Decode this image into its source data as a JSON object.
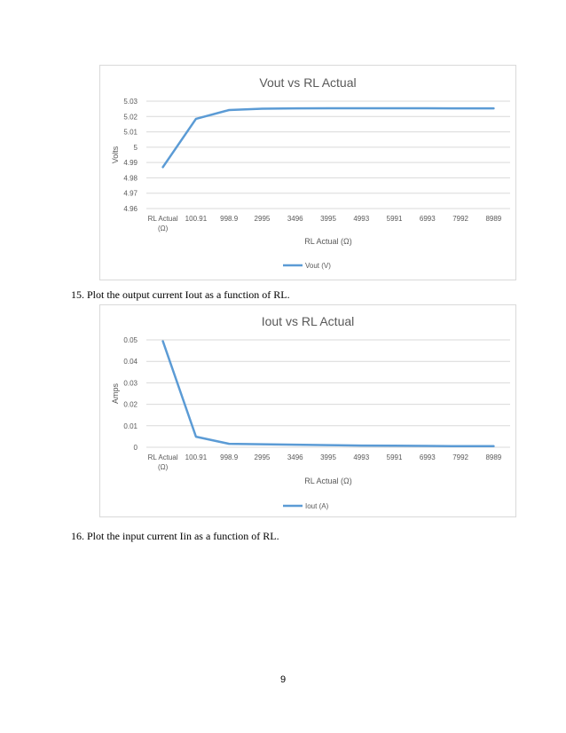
{
  "questions": {
    "q15": "15. Plot the output current Iout as a function of RL.",
    "q16": "16. Plot the input current Iin as a function of RL."
  },
  "page_number": "9",
  "series_color": "#5b9bd5",
  "chart_data": [
    {
      "type": "line",
      "title": "Vout vs RL Actual",
      "xlabel": "RL Actual (Ω)",
      "ylabel": "Volts",
      "categories": [
        "RL Actual (Ω)",
        "100.91",
        "998.9",
        "2995",
        "3496",
        "3995",
        "4993",
        "5991",
        "6993",
        "7992",
        "8989"
      ],
      "series": [
        {
          "name": "Vout (V)",
          "values": [
            4.987,
            5.0185,
            5.0242,
            5.0251,
            5.0253,
            5.0254,
            5.0254,
            5.0254,
            5.0254,
            5.0253,
            5.0253
          ]
        }
      ],
      "yticks": [
        "4.96",
        "4.97",
        "4.98",
        "4.99",
        "5",
        "5.01",
        "5.02",
        "5.03"
      ],
      "ylim": [
        4.96,
        5.03
      ],
      "grid": true,
      "legend": "bottom"
    },
    {
      "type": "line",
      "title": "Iout vs RL Actual",
      "xlabel": "RL Actual (Ω)",
      "ylabel": "Amps",
      "categories": [
        "RL Actual (Ω)",
        "100.91",
        "998.9",
        "2995",
        "3496",
        "3995",
        "4993",
        "5991",
        "6993",
        "7992",
        "8989"
      ],
      "series": [
        {
          "name": "Iout (A)",
          "values": [
            0.0494,
            0.0049,
            0.0016,
            0.0014,
            0.0012,
            0.001,
            0.0008,
            0.0007,
            0.0006,
            0.0005,
            0.0005
          ]
        }
      ],
      "yticks": [
        "0",
        "0.01",
        "0.02",
        "0.03",
        "0.04",
        "0.05"
      ],
      "ylim": [
        0,
        0.05
      ],
      "grid": true,
      "legend": "bottom"
    }
  ]
}
